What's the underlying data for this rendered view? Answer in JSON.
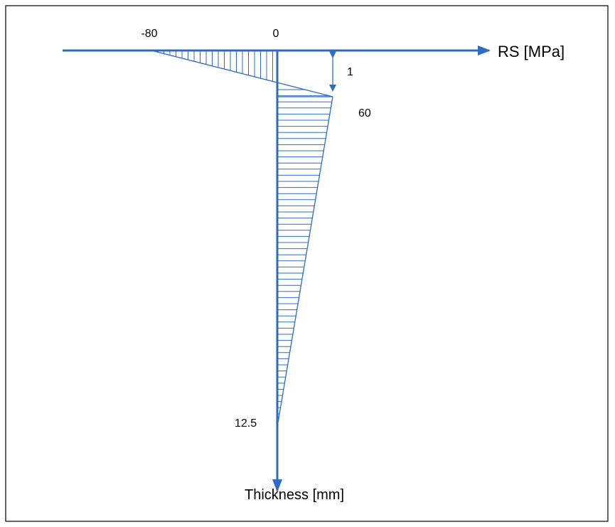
{
  "diagram": {
    "labels": {
      "compression": "-80",
      "zero": "0",
      "depth": "1",
      "tension": "60",
      "thickness": "12.5"
    },
    "axes": {
      "x_title": "RS [MPa]",
      "y_title": "Thickness [mm]"
    }
  }
}
